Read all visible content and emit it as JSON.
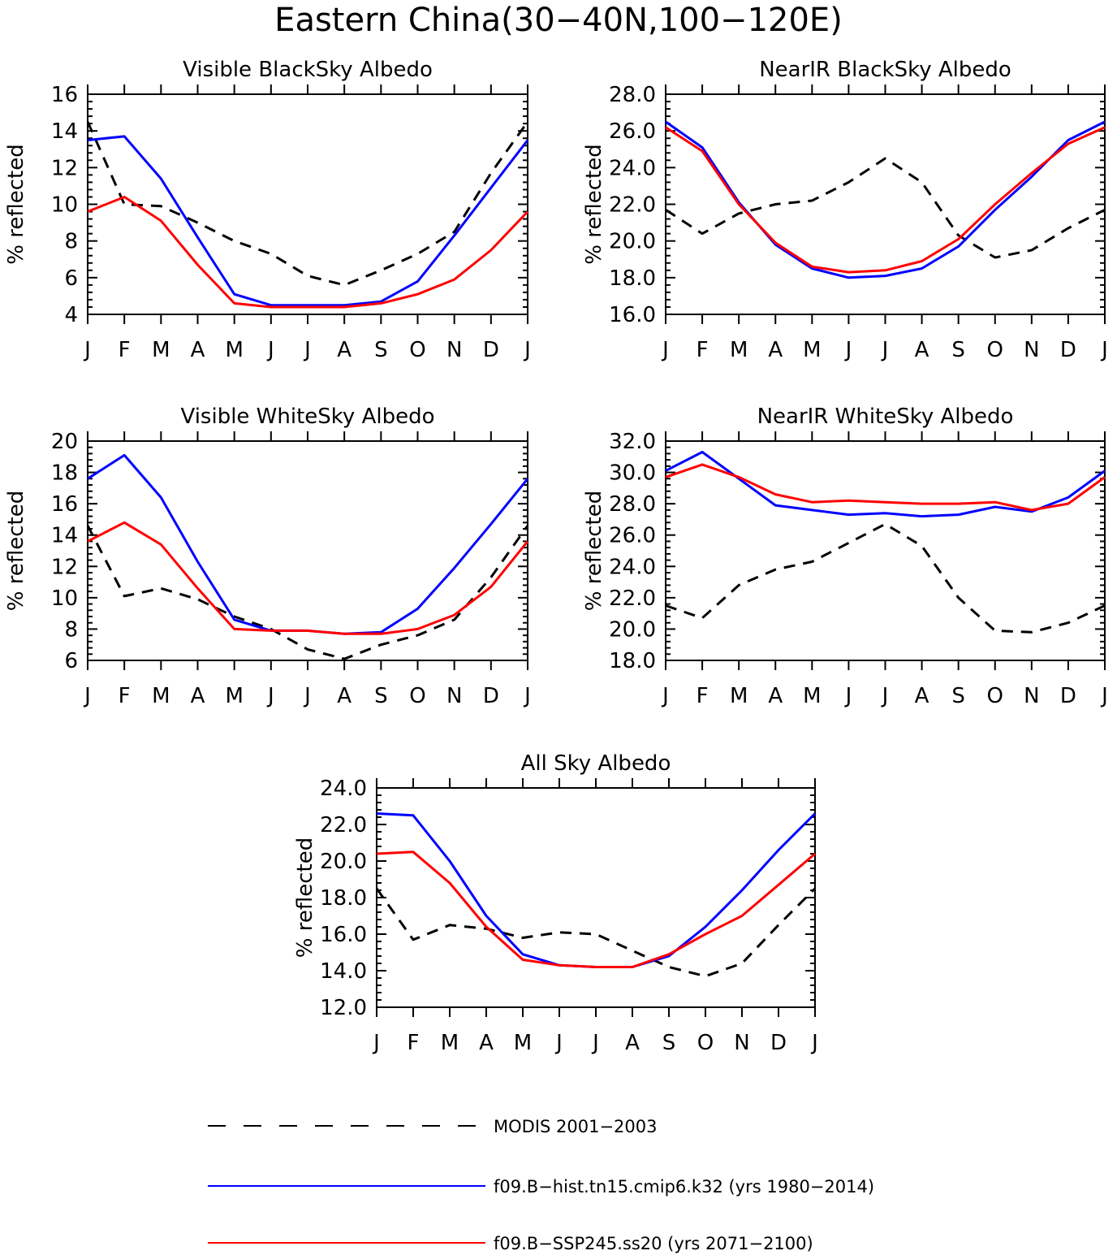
{
  "figure": {
    "title": "Eastern China(30−40N,100−120E)"
  },
  "series_styles": {
    "modis": {
      "color": "#000000",
      "dash": true
    },
    "hist": {
      "color": "#0000ff",
      "dash": false
    },
    "ssp": {
      "color": "#ff0000",
      "dash": false
    }
  },
  "legend": [
    {
      "key": "modis",
      "label": "MODIS 2001−2003"
    },
    {
      "key": "hist",
      "label": "f09.B−hist.tn15.cmip6.k32 (yrs 1980−2014)"
    },
    {
      "key": "ssp",
      "label": "f09.B−SSP245.ss20 (yrs 2071−2100)"
    }
  ],
  "chart_data": [
    {
      "type": "line",
      "title": "Visible BlackSky Albedo",
      "ylabel": "% reflected",
      "categories": [
        "J",
        "F",
        "M",
        "A",
        "M",
        "J",
        "J",
        "A",
        "S",
        "O",
        "N",
        "D",
        "J"
      ],
      "ylim": [
        4,
        16
      ],
      "yticks": [
        "4",
        "6",
        "8",
        "10",
        "12",
        "14",
        "16"
      ],
      "series": [
        {
          "key": "modis",
          "values": [
            14.5,
            10.0,
            9.9,
            9.0,
            8.0,
            7.3,
            6.1,
            5.6,
            6.4,
            7.3,
            8.5,
            11.7,
            14.5
          ]
        },
        {
          "key": "hist",
          "values": [
            13.5,
            13.7,
            11.4,
            8.2,
            5.1,
            4.5,
            4.5,
            4.5,
            4.7,
            5.8,
            8.3,
            10.9,
            13.5
          ]
        },
        {
          "key": "ssp",
          "values": [
            9.6,
            10.4,
            9.1,
            6.7,
            4.6,
            4.4,
            4.4,
            4.4,
            4.6,
            5.1,
            5.9,
            7.5,
            9.6
          ]
        }
      ]
    },
    {
      "type": "line",
      "title": "NearIR BlackSky Albedo",
      "ylabel": "% reflected",
      "categories": [
        "J",
        "F",
        "M",
        "A",
        "M",
        "J",
        "J",
        "A",
        "S",
        "O",
        "N",
        "D",
        "J"
      ],
      "ylim": [
        16,
        28
      ],
      "yticks": [
        "16.0",
        "18.0",
        "20.0",
        "22.0",
        "24.0",
        "26.0",
        "28.0"
      ],
      "series": [
        {
          "key": "modis",
          "values": [
            21.7,
            20.4,
            21.5,
            22.0,
            22.2,
            23.2,
            24.5,
            23.2,
            20.3,
            19.1,
            19.5,
            20.7,
            21.7
          ]
        },
        {
          "key": "hist",
          "values": [
            26.5,
            25.1,
            22.1,
            19.8,
            18.5,
            18.0,
            18.1,
            18.5,
            19.7,
            21.7,
            23.5,
            25.5,
            26.5
          ]
        },
        {
          "key": "ssp",
          "values": [
            26.2,
            24.9,
            22.0,
            19.9,
            18.6,
            18.3,
            18.4,
            18.9,
            20.1,
            22.0,
            23.7,
            25.3,
            26.2
          ]
        }
      ]
    },
    {
      "type": "line",
      "title": "Visible WhiteSky Albedo",
      "ylabel": "% reflected",
      "categories": [
        "J",
        "F",
        "M",
        "A",
        "M",
        "J",
        "J",
        "A",
        "S",
        "O",
        "N",
        "D",
        "J"
      ],
      "ylim": [
        6,
        20
      ],
      "yticks": [
        "6",
        "8",
        "10",
        "12",
        "14",
        "16",
        "18",
        "20"
      ],
      "series": [
        {
          "key": "modis",
          "values": [
            14.6,
            10.1,
            10.6,
            9.9,
            8.8,
            8.0,
            6.7,
            6.1,
            7.0,
            7.6,
            8.6,
            11.3,
            14.6
          ]
        },
        {
          "key": "hist",
          "values": [
            17.6,
            19.1,
            16.4,
            12.3,
            8.6,
            7.9,
            7.9,
            7.7,
            7.8,
            9.3,
            11.9,
            14.7,
            17.6
          ]
        },
        {
          "key": "ssp",
          "values": [
            13.6,
            14.8,
            13.4,
            10.6,
            8.0,
            7.9,
            7.9,
            7.7,
            7.7,
            8.0,
            8.9,
            10.7,
            13.6
          ]
        }
      ]
    },
    {
      "type": "line",
      "title": "NearIR WhiteSky Albedo",
      "ylabel": "% reflected",
      "categories": [
        "J",
        "F",
        "M",
        "A",
        "M",
        "J",
        "J",
        "A",
        "S",
        "O",
        "N",
        "D",
        "J"
      ],
      "ylim": [
        18,
        32
      ],
      "yticks": [
        "18.0",
        "20.0",
        "22.0",
        "24.0",
        "26.0",
        "28.0",
        "30.0",
        "32.0"
      ],
      "series": [
        {
          "key": "modis",
          "values": [
            21.5,
            20.7,
            22.8,
            23.8,
            24.3,
            25.5,
            26.7,
            25.3,
            22.0,
            19.9,
            19.8,
            20.4,
            21.5
          ]
        },
        {
          "key": "hist",
          "values": [
            30.1,
            31.3,
            29.6,
            27.9,
            27.6,
            27.3,
            27.4,
            27.2,
            27.3,
            27.8,
            27.5,
            28.4,
            30.1
          ]
        },
        {
          "key": "ssp",
          "values": [
            29.7,
            30.5,
            29.7,
            28.6,
            28.1,
            28.2,
            28.1,
            28.0,
            28.0,
            28.1,
            27.6,
            28.0,
            29.7
          ]
        }
      ]
    },
    {
      "type": "line",
      "title": "All Sky Albedo",
      "ylabel": "% reflected",
      "categories": [
        "J",
        "F",
        "M",
        "A",
        "M",
        "J",
        "J",
        "A",
        "S",
        "O",
        "N",
        "D",
        "J"
      ],
      "ylim": [
        12,
        24
      ],
      "yticks": [
        "12.0",
        "14.0",
        "16.0",
        "18.0",
        "20.0",
        "22.0",
        "24.0"
      ],
      "series": [
        {
          "key": "modis",
          "values": [
            18.5,
            15.7,
            16.5,
            16.3,
            15.8,
            16.1,
            16.0,
            15.1,
            14.2,
            13.7,
            14.4,
            16.5,
            18.5
          ]
        },
        {
          "key": "hist",
          "values": [
            22.6,
            22.5,
            20.0,
            17.0,
            14.9,
            14.3,
            14.2,
            14.2,
            14.8,
            16.4,
            18.4,
            20.6,
            22.6
          ]
        },
        {
          "key": "ssp",
          "values": [
            20.4,
            20.5,
            18.8,
            16.4,
            14.6,
            14.3,
            14.2,
            14.2,
            14.9,
            16.0,
            17.0,
            18.7,
            20.4
          ]
        }
      ]
    }
  ]
}
